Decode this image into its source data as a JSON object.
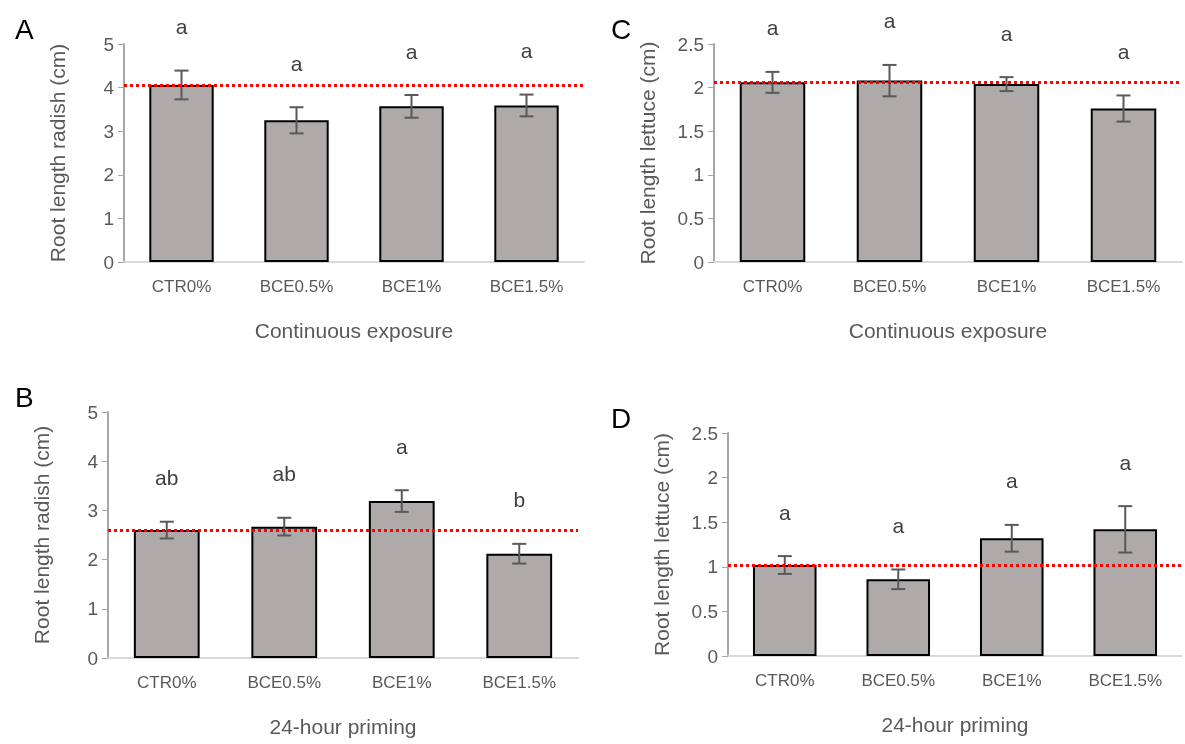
{
  "chart_data": [
    {
      "type": "bar",
      "title": "A",
      "categories": [
        "CTR0%",
        "BCE0.5%",
        "BCE1%",
        "BCE1.5%"
      ],
      "values": [
        4.06,
        3.25,
        3.57,
        3.59
      ],
      "errors": [
        0.33,
        0.3,
        0.26,
        0.25
      ],
      "color": "#aeaaaa",
      "xlabel": "Continuous exposure",
      "ylabel": "Root length radish (cm)",
      "ylim": [
        0,
        5
      ],
      "yticks": [
        0,
        1,
        2,
        3,
        4,
        5
      ],
      "grid": false,
      "ref_lines": [
        {
          "axis": "y",
          "value": 4.06,
          "color": "#ff0000",
          "line_style": "dotted"
        }
      ],
      "annotations": [
        "a",
        "a",
        "a",
        "a"
      ]
    },
    {
      "type": "bar",
      "title": "C",
      "categories": [
        "CTR0%",
        "BCE0.5%",
        "BCE1%",
        "BCE1.5%"
      ],
      "values": [
        2.06,
        2.08,
        2.04,
        1.76
      ],
      "errors": [
        0.12,
        0.18,
        0.08,
        0.15
      ],
      "color": "#aeaaaa",
      "xlabel": "Continuous exposure",
      "ylabel": "Root length lettuce (cm)",
      "ylim": [
        0,
        2.5
      ],
      "yticks": [
        0,
        0.5,
        1,
        1.5,
        2,
        2.5
      ],
      "grid": false,
      "ref_lines": [
        {
          "axis": "y",
          "value": 2.06,
          "color": "#ff0000",
          "line_style": "dotted"
        }
      ],
      "annotations": [
        "a",
        "a",
        "a",
        "a"
      ]
    },
    {
      "type": "bar",
      "title": "B",
      "categories": [
        "CTR0%",
        "BCE0.5%",
        "BCE1%",
        "BCE1.5%"
      ],
      "values": [
        2.6,
        2.67,
        3.19,
        2.12
      ],
      "errors": [
        0.17,
        0.18,
        0.22,
        0.2
      ],
      "color": "#aeaaaa",
      "xlabel": "24-hour priming",
      "ylabel": "Root length radish (cm)",
      "ylim": [
        0,
        5
      ],
      "yticks": [
        0,
        1,
        2,
        3,
        4,
        5
      ],
      "grid": false,
      "ref_lines": [
        {
          "axis": "y",
          "value": 2.6,
          "color": "#ff0000",
          "line_style": "dotted"
        }
      ],
      "annotations": [
        "ab",
        "ab",
        "a",
        "b"
      ]
    },
    {
      "type": "bar",
      "title": "D",
      "categories": [
        "CTR0%",
        "BCE0.5%",
        "BCE1%",
        "BCE1.5%"
      ],
      "values": [
        1.02,
        0.86,
        1.32,
        1.42
      ],
      "errors": [
        0.1,
        0.11,
        0.15,
        0.26
      ],
      "color": "#aeaaaa",
      "xlabel": "24-hour priming",
      "ylabel": "Root length lettuce (cm)",
      "ylim": [
        0,
        2.5
      ],
      "yticks": [
        0,
        0.5,
        1,
        1.5,
        2,
        2.5
      ],
      "grid": false,
      "ref_lines": [
        {
          "axis": "y",
          "value": 1.02,
          "color": "#ff0000",
          "line_style": "dotted"
        }
      ],
      "annotations": [
        "a",
        "a",
        "a",
        "a"
      ]
    }
  ]
}
